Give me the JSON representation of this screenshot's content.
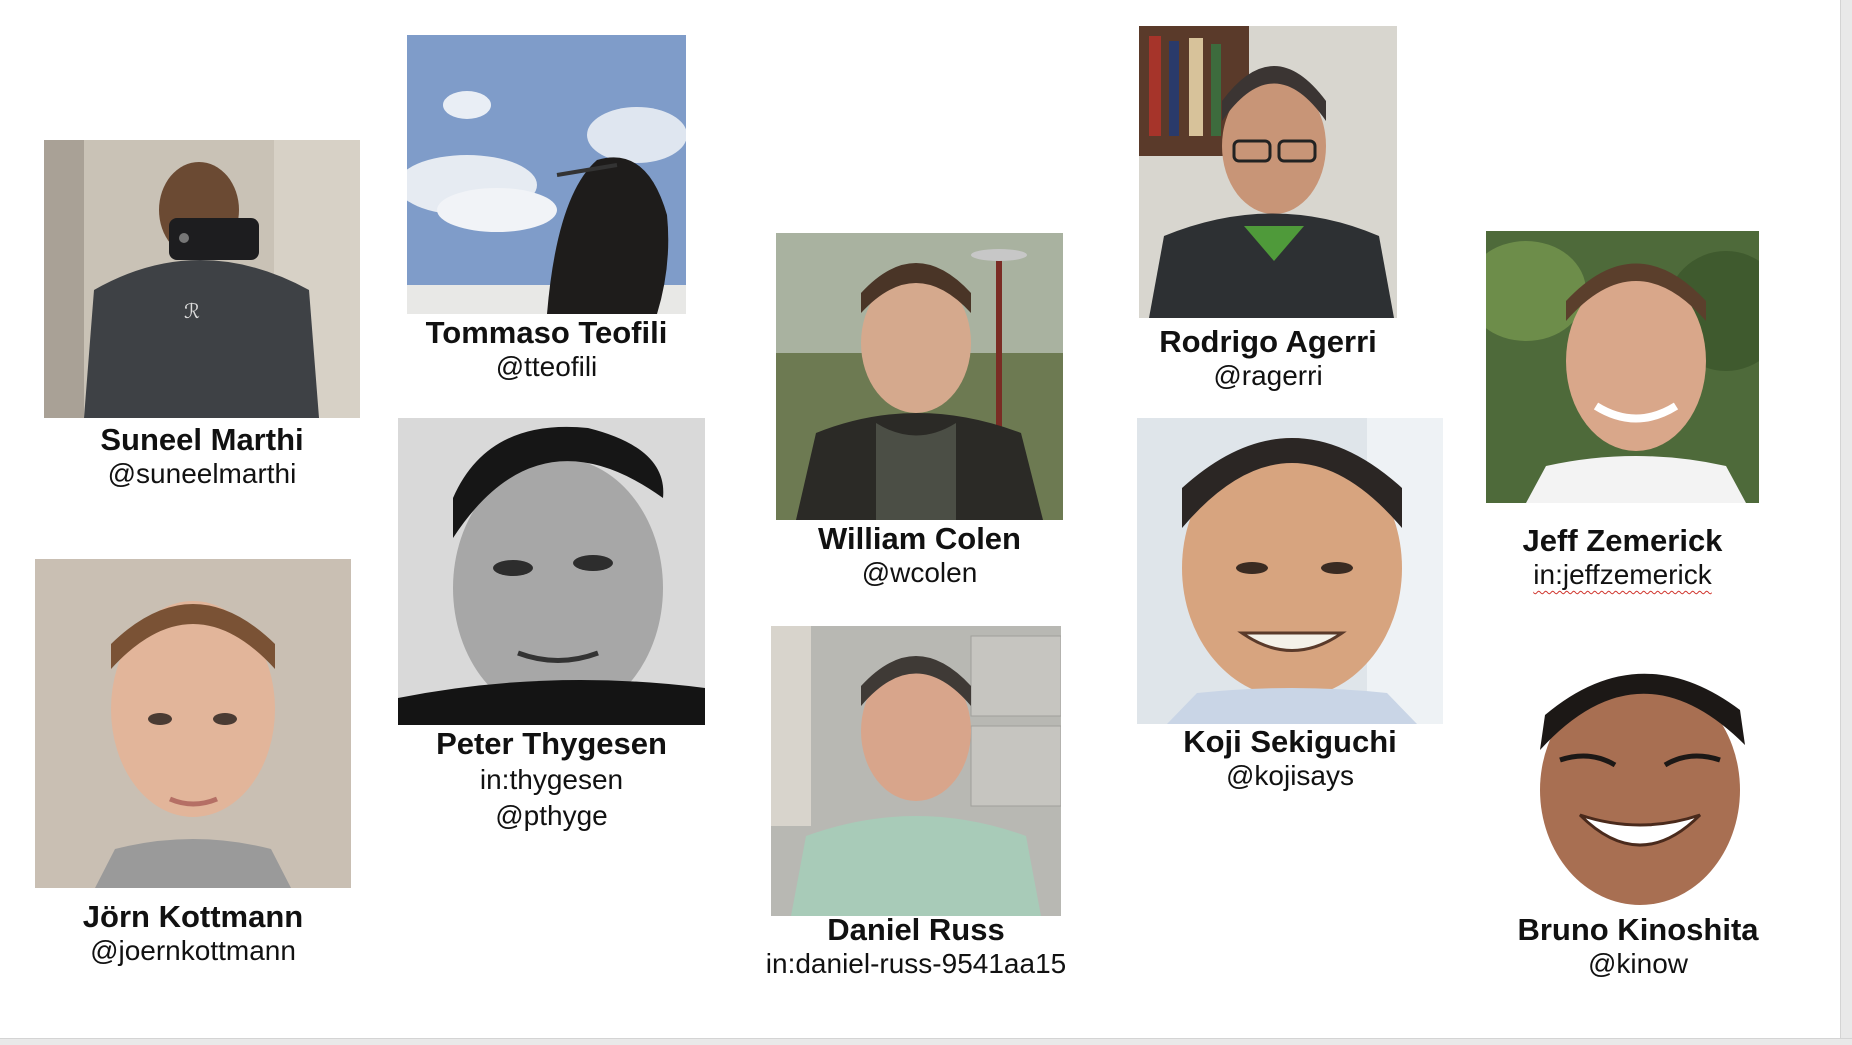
{
  "people": [
    {
      "name": "Suneel Marthi",
      "handles": [
        "@suneelmarthi"
      ]
    },
    {
      "name": "Tommaso Teofili",
      "handles": [
        "@tteofili"
      ]
    },
    {
      "name": "William Colen",
      "handles": [
        "@wcolen"
      ]
    },
    {
      "name": "Rodrigo Agerri",
      "handles": [
        "@ragerri"
      ]
    },
    {
      "name": "Jeff Zemerick",
      "handles": [
        "in:jeffzemerick"
      ]
    },
    {
      "name": "Peter Thygesen",
      "handles": [
        "in:thygesen",
        "@pthyge"
      ]
    },
    {
      "name": "Jörn Kottmann",
      "handles": [
        "@joernkottmann"
      ]
    },
    {
      "name": "Daniel Russ",
      "handles": [
        "in:daniel-russ-9541aa15"
      ]
    },
    {
      "name": "Koji Sekiguchi",
      "handles": [
        "@kojisays"
      ]
    },
    {
      "name": "Bruno Kinoshita",
      "handles": [
        "@kinow"
      ]
    }
  ]
}
